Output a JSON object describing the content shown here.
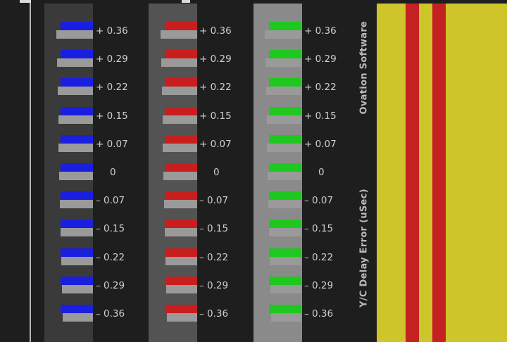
{
  "software_label": "Ovation Software",
  "axis_label": "Y/C Delay Error (uSec)",
  "rows": [
    {
      "label": "+ 0.36",
      "offset": 0.36
    },
    {
      "label": "+ 0.29",
      "offset": 0.29
    },
    {
      "label": "+ 0.22",
      "offset": 0.22
    },
    {
      "label": "+ 0.15",
      "offset": 0.15
    },
    {
      "label": "+ 0.07",
      "offset": 0.07
    },
    {
      "label": "0",
      "offset": 0
    },
    {
      "label": "– 0.07",
      "offset": -0.07
    },
    {
      "label": "– 0.15",
      "offset": -0.15
    },
    {
      "label": "– 0.22",
      "offset": -0.22
    },
    {
      "label": "– 0.29",
      "offset": -0.29
    },
    {
      "label": "– 0.36",
      "offset": -0.36
    }
  ],
  "columns": [
    {
      "name": "blue",
      "color": "#1a1ee0",
      "panel_color": "#3a3a3a"
    },
    {
      "name": "red",
      "color": "#c81e1e",
      "panel_color": "#535353"
    },
    {
      "name": "green",
      "color": "#1ec81e",
      "panel_color": "#8a8a8a"
    }
  ],
  "colors": {
    "background": "#1e1e1e",
    "bar_gray": "#9a9a9a",
    "yellow": "#cdc52a",
    "red": "#c42222"
  }
}
